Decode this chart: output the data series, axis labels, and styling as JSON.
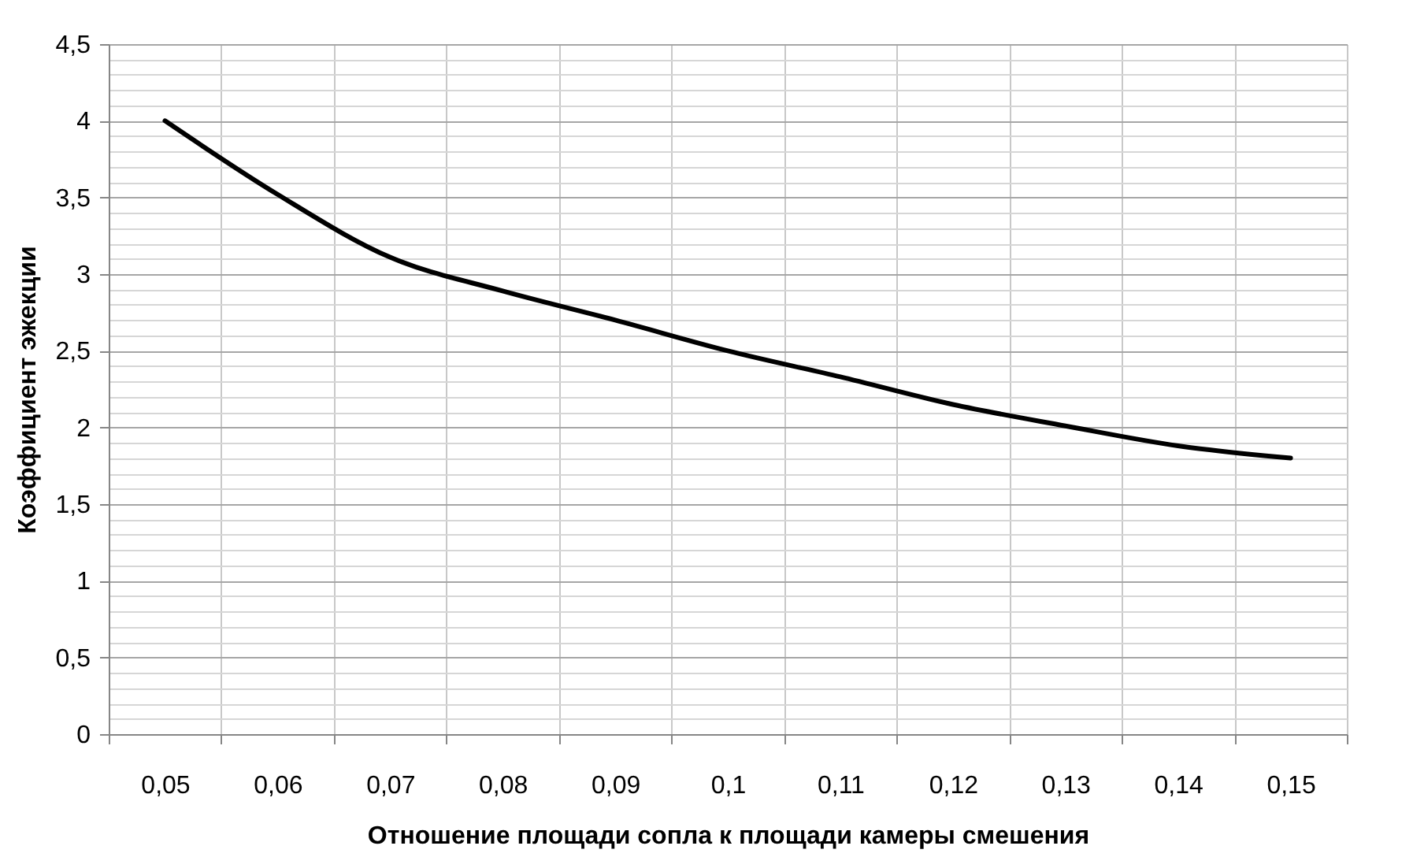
{
  "chart_data": {
    "type": "line",
    "xlabel": "Отношение площади сопла к площади камеры смешения",
    "ylabel": "Коэффициент эжекции",
    "categories": [
      "0,05",
      "0,06",
      "0,07",
      "0,08",
      "0,09",
      "0,1",
      "0,11",
      "0,12",
      "0,13",
      "0,14",
      "0,15"
    ],
    "series": [
      {
        "color": "#000000",
        "values": [
          4.0,
          3.52,
          3.11,
          2.89,
          2.7,
          2.5,
          2.33,
          2.15,
          2.01,
          1.88,
          1.8
        ]
      }
    ],
    "ylim": [
      0,
      4.5
    ],
    "yticks": [
      0,
      {
        "value": 0.5,
        "label": "0,5"
      },
      1,
      {
        "value": 1.5,
        "label": "1,5"
      },
      2,
      {
        "value": 2.5,
        "label": "2,5"
      },
      3,
      {
        "value": 3.5,
        "label": "3,5"
      },
      4,
      {
        "value": 4.5,
        "label": "4,5"
      }
    ],
    "grid": true,
    "marker": "none",
    "line_style": "solid"
  }
}
